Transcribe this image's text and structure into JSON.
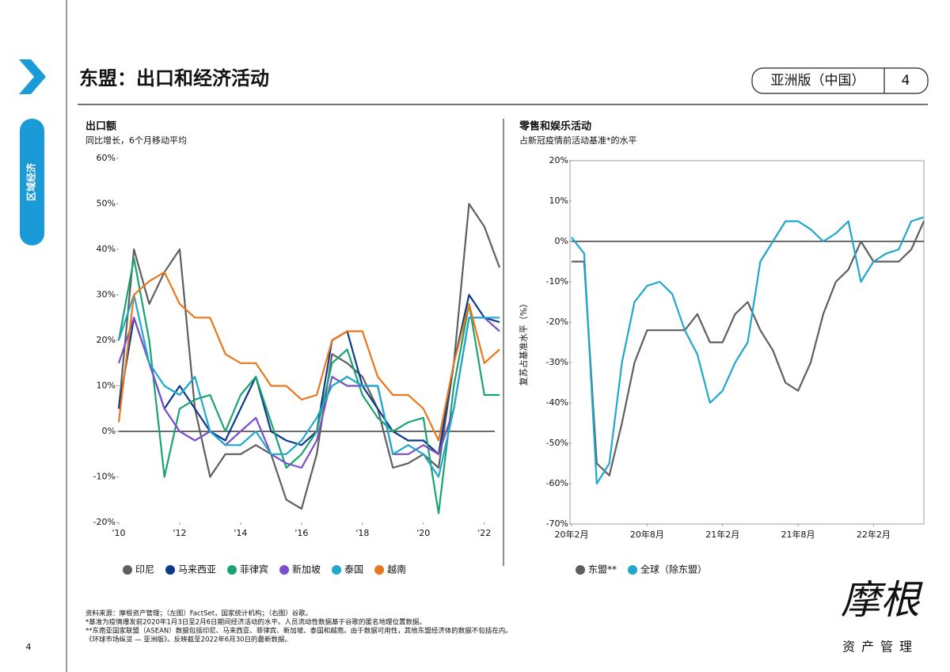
{
  "header": {
    "title": "东盟：出口和经济活动",
    "badge": "亚洲版（中国）",
    "badge_number": "4",
    "section": "区域经济",
    "page_number": "4"
  },
  "chart_data": [
    {
      "type": "line",
      "title": "出口额",
      "subtitle": "同比增长，6个月移动平均",
      "x": [
        2010,
        2010.5,
        2011,
        2011.5,
        2012,
        2012.5,
        2013,
        2013.5,
        2014,
        2014.5,
        2015,
        2015.5,
        2016,
        2016.5,
        2017,
        2017.5,
        2018,
        2018.5,
        2019,
        2019.5,
        2020,
        2020.5,
        2021,
        2021.5,
        2022,
        2022.5
      ],
      "xlim": [
        2010,
        2022.5
      ],
      "xticks": [
        {
          "value": 2010,
          "label": "'10"
        },
        {
          "value": 2012,
          "label": "'12"
        },
        {
          "value": 2014,
          "label": "'14"
        },
        {
          "value": 2016,
          "label": "'16"
        },
        {
          "value": 2018,
          "label": "'18"
        },
        {
          "value": 2020,
          "label": "'20"
        },
        {
          "value": 2022,
          "label": "'22"
        }
      ],
      "ylim": [
        -20,
        60
      ],
      "yticks": [
        {
          "value": -20,
          "label": "-20%"
        },
        {
          "value": -10,
          "label": "-10%"
        },
        {
          "value": 0,
          "label": "0%"
        },
        {
          "value": 10,
          "label": "10%"
        },
        {
          "value": 20,
          "label": "20%"
        },
        {
          "value": 30,
          "label": "30%"
        },
        {
          "value": 40,
          "label": "40%"
        },
        {
          "value": 50,
          "label": "50%"
        },
        {
          "value": 60,
          "label": "60%"
        }
      ],
      "legend": "bottom",
      "frame": false,
      "series": [
        {
          "name": "印尼",
          "color": "#5f5f5f",
          "values": [
            5,
            40,
            28,
            35,
            40,
            5,
            -10,
            -5,
            -5,
            -3,
            -5,
            -15,
            -17,
            -5,
            17,
            15,
            12,
            5,
            -8,
            -7,
            -5,
            -8,
            15,
            50,
            45,
            36
          ]
        },
        {
          "name": "马来西亚",
          "color": "#0b3a8a",
          "values": [
            5,
            25,
            15,
            5,
            10,
            5,
            0,
            -2,
            5,
            12,
            0,
            -2,
            -3,
            0,
            20,
            22,
            10,
            5,
            0,
            -2,
            -2,
            -5,
            15,
            30,
            25,
            24
          ]
        },
        {
          "name": "菲律宾",
          "color": "#1aa371",
          "values": [
            20,
            38,
            20,
            -10,
            5,
            7,
            8,
            0,
            8,
            12,
            2,
            -8,
            -5,
            0,
            15,
            18,
            8,
            3,
            0,
            2,
            3,
            -18,
            10,
            28,
            8,
            8
          ]
        },
        {
          "name": "新加坡",
          "color": "#7b4fc9",
          "values": [
            15,
            25,
            15,
            5,
            0,
            -2,
            0,
            -3,
            0,
            3,
            -5,
            -7,
            -8,
            -2,
            12,
            10,
            10,
            10,
            -5,
            -5,
            -3,
            -5,
            5,
            25,
            25,
            22
          ]
        },
        {
          "name": "泰国",
          "color": "#1fa8c9",
          "values": [
            20,
            30,
            15,
            10,
            8,
            12,
            0,
            -3,
            -3,
            0,
            -5,
            -5,
            -2,
            3,
            10,
            12,
            10,
            10,
            -5,
            -3,
            -5,
            -10,
            5,
            25,
            25,
            25
          ]
        },
        {
          "name": "越南",
          "color": "#e8771e",
          "values": [
            2,
            30,
            33,
            35,
            28,
            25,
            25,
            17,
            15,
            15,
            10,
            10,
            7,
            8,
            20,
            22,
            22,
            12,
            8,
            8,
            5,
            -2,
            15,
            28,
            15,
            18
          ]
        }
      ]
    },
    {
      "type": "line",
      "title": "零售和娱乐活动",
      "subtitle": "占新冠疫情前活动基准*的水平",
      "ylabel": "复苏占基准水平（%）",
      "x": [
        "2020-02",
        "2020-03",
        "2020-04",
        "2020-05",
        "2020-06",
        "2020-07",
        "2020-08",
        "2020-09",
        "2020-10",
        "2020-11",
        "2020-12",
        "2021-01",
        "2021-02",
        "2021-03",
        "2021-04",
        "2021-05",
        "2021-06",
        "2021-07",
        "2021-08",
        "2021-09",
        "2021-10",
        "2021-11",
        "2021-12",
        "2022-01",
        "2022-02",
        "2022-03",
        "2022-04",
        "2022-05",
        "2022-06"
      ],
      "xlim": [
        "2020-02",
        "2022-06"
      ],
      "xticks": [
        {
          "value": "2020-02",
          "label": "20年2月"
        },
        {
          "value": "2020-08",
          "label": "20年8月"
        },
        {
          "value": "2021-02",
          "label": "21年2月"
        },
        {
          "value": "2021-08",
          "label": "21年8月"
        },
        {
          "value": "2022-02",
          "label": "22年2月"
        }
      ],
      "ylim": [
        -70,
        20
      ],
      "yticks": [
        {
          "value": -70,
          "label": "-70%"
        },
        {
          "value": -60,
          "label": "-60%"
        },
        {
          "value": -50,
          "label": "-50%"
        },
        {
          "value": -40,
          "label": "-40%"
        },
        {
          "value": -30,
          "label": "-30%"
        },
        {
          "value": -20,
          "label": "-20%"
        },
        {
          "value": -10,
          "label": "-10%"
        },
        {
          "value": 0,
          "label": "0%"
        },
        {
          "value": 10,
          "label": "10%"
        },
        {
          "value": 20,
          "label": "20%"
        }
      ],
      "legend": "bottom",
      "frame": true,
      "series": [
        {
          "name": "东盟**",
          "color": "#5f5f5f",
          "values": [
            -5,
            -5,
            -55,
            -58,
            -45,
            -30,
            -22,
            -22,
            -22,
            -22,
            -18,
            -25,
            -25,
            -18,
            -15,
            -22,
            -27,
            -35,
            -37,
            -30,
            -18,
            -10,
            -7,
            0,
            -5,
            -5,
            -5,
            -2,
            5
          ]
        },
        {
          "name": "全球（除东盟）",
          "color": "#1fa8c9",
          "values": [
            1,
            -3,
            -60,
            -55,
            -30,
            -15,
            -11,
            -10,
            -13,
            -22,
            -28,
            -40,
            -37,
            -30,
            -25,
            -5,
            0,
            5,
            5,
            3,
            0,
            2,
            5,
            -10,
            -5,
            -3,
            -2,
            5,
            6
          ]
        }
      ]
    }
  ],
  "footnotes": [
    "资料来源：摩根资产管理；（左图）FactSet，国家统计机构；（右图）谷歌。",
    "*基准为疫情爆发前2020年1月3日至2月6日期间经济活动的水平。人员流动性数据基于谷歌的匿名地理位置数据。",
    "**东南亚国家联盟（ASEAN）数据包括印尼、马来西亚、菲律宾、新加坡、泰国和越南。由于数据可用性，其他东盟经济体的数据不包括在内。",
    "《环球市场纵览 — 亚洲版》。反映截至2022年6月30日的最新数据。"
  ],
  "logo": {
    "name": "摩根",
    "tagline": "资产管理"
  }
}
